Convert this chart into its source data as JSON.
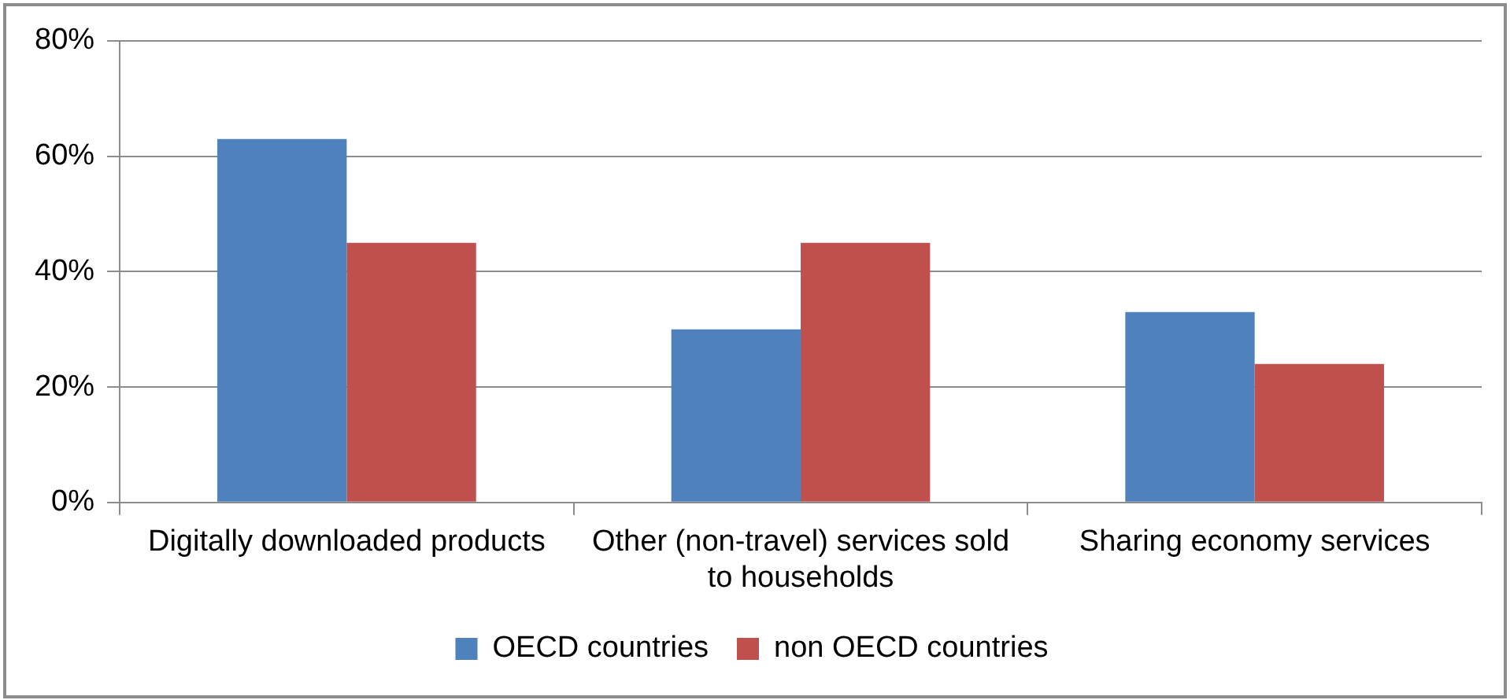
{
  "chart_data": {
    "type": "bar",
    "categories": [
      "Digitally downloaded products",
      "Other (non-travel) services sold to households",
      "Sharing economy services"
    ],
    "series": [
      {
        "name": "OECD countries",
        "color": "#4f81bd",
        "values": [
          63,
          30,
          33
        ]
      },
      {
        "name": "non OECD countries",
        "color": "#c0504d",
        "values": [
          45,
          45,
          24
        ]
      }
    ],
    "ylim": [
      0,
      80
    ],
    "yticks": [
      {
        "value": 0,
        "label": "0%"
      },
      {
        "value": 20,
        "label": "20%"
      },
      {
        "value": 40,
        "label": "40%"
      },
      {
        "value": 60,
        "label": "60%"
      },
      {
        "value": 80,
        "label": "80%"
      }
    ],
    "grid": "y",
    "legend": "bottom"
  }
}
